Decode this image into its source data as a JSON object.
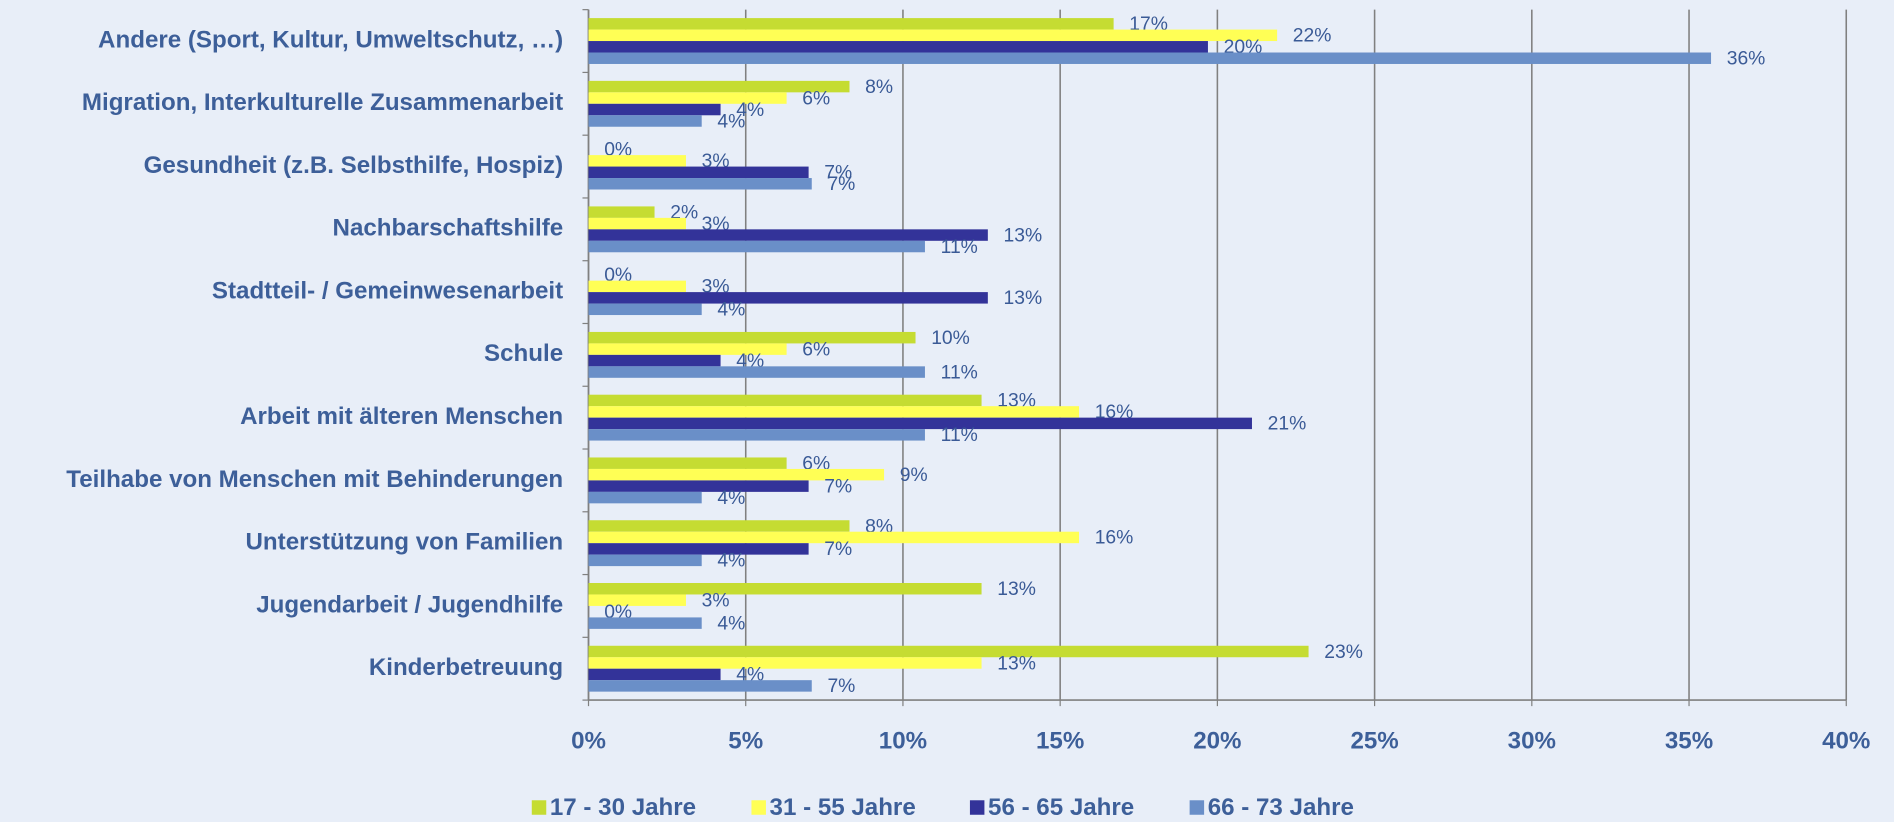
{
  "chart_data": {
    "type": "bar",
    "orientation": "horizontal",
    "categories": [
      "Andere (Sport, Kultur, Umweltschutz, …)",
      "Migration, Interkulturelle Zusammenarbeit",
      "Gesundheit (z.B. Selbsthilfe, Hospiz)",
      "Nachbarschaftshilfe",
      "Stadtteil- / Gemeinwesenarbeit",
      "Schule",
      "Arbeit mit älteren Menschen",
      "Teilhabe von Menschen mit Behinderungen",
      "Unterstützung von Familien",
      "Jugendarbeit / Jugendhilfe",
      "Kinderbetreuung"
    ],
    "series": [
      {
        "name": "17 - 30 Jahre",
        "color": "#c5dc32",
        "values": [
          16.7,
          8.3,
          0,
          2.1,
          0,
          10.4,
          12.5,
          6.3,
          8.3,
          12.5,
          22.9
        ],
        "value_labels": [
          "17%",
          "8%",
          "0%",
          "2%",
          "0%",
          "10%",
          "13%",
          "6%",
          "8%",
          "13%",
          "23%"
        ]
      },
      {
        "name": "31 - 55 Jahre",
        "color": "#ffff55",
        "values": [
          21.9,
          6.3,
          3.1,
          3.1,
          3.1,
          6.3,
          15.6,
          9.4,
          15.6,
          3.1,
          12.5
        ],
        "value_labels": [
          "22%",
          "6%",
          "3%",
          "3%",
          "3%",
          "6%",
          "16%",
          "9%",
          "16%",
          "3%",
          "13%"
        ]
      },
      {
        "name": "56 - 65 Jahre",
        "color": "#333399",
        "values": [
          19.7,
          4.2,
          7.0,
          12.7,
          12.7,
          4.2,
          21.1,
          7.0,
          7.0,
          0,
          4.2
        ],
        "value_labels": [
          "20%",
          "4%",
          "7%",
          "13%",
          "13%",
          "4%",
          "21%",
          "7%",
          "7%",
          "0%",
          "4%"
        ]
      },
      {
        "name": "66 - 73 Jahre",
        "color": "#6a8fc8",
        "values": [
          35.7,
          3.6,
          7.1,
          10.7,
          3.6,
          10.7,
          10.7,
          3.6,
          3.6,
          3.6,
          7.1
        ],
        "value_labels": [
          "36%",
          "4%",
          "7%",
          "11%",
          "4%",
          "11%",
          "11%",
          "4%",
          "4%",
          "4%",
          "7%"
        ]
      }
    ],
    "xlim": [
      0,
      40
    ],
    "xticks": [
      {
        "value": 0,
        "label": "0%"
      },
      {
        "value": 5,
        "label": "5%"
      },
      {
        "value": 10,
        "label": "10%"
      },
      {
        "value": 15,
        "label": "15%"
      },
      {
        "value": 20,
        "label": "20%"
      },
      {
        "value": 25,
        "label": "25%"
      },
      {
        "value": 30,
        "label": "30%"
      },
      {
        "value": 35,
        "label": "35%"
      },
      {
        "value": 40,
        "label": "40%"
      }
    ],
    "grid": true,
    "legend": "bottom"
  }
}
